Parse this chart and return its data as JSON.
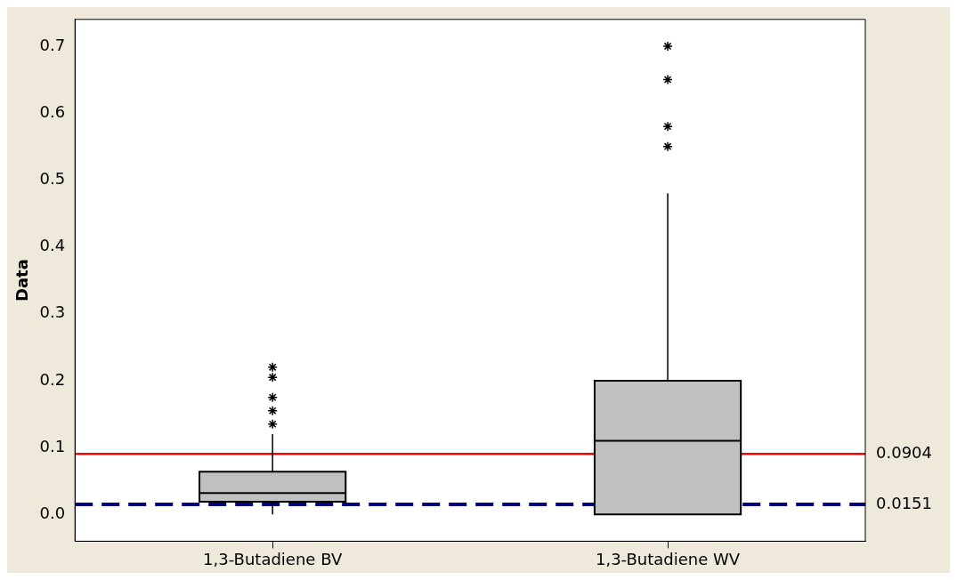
{
  "chart_data": {
    "type": "box",
    "ylabel": "Data",
    "categories": [
      "1,3-Butadiene BV",
      "1,3-Butadiene WV"
    ],
    "boxes": [
      {
        "low": 0,
        "q1": 0.019,
        "median": 0.032,
        "q3": 0.064,
        "high": 0.12,
        "outliers": [
          0.22,
          0.205,
          0.175,
          0.155,
          0.135
        ]
      },
      {
        "low": 0,
        "q1": 0,
        "median": 0.11,
        "q3": 0.2,
        "high": 0.48,
        "outliers": [
          0.7,
          0.65,
          0.58,
          0.55
        ]
      }
    ],
    "color": "#c0c0c0",
    "marker": "star",
    "ylim": [
      -0.04,
      0.74
    ],
    "yticks": [
      {
        "value": 0,
        "label": "0.0"
      },
      {
        "value": 0.1,
        "label": "0.1"
      },
      {
        "value": 0.2,
        "label": "0.2"
      },
      {
        "value": 0.3,
        "label": "0.3"
      },
      {
        "value": 0.4,
        "label": "0.4"
      },
      {
        "value": 0.5,
        "label": "0.5"
      },
      {
        "value": 0.6,
        "label": "0.6"
      },
      {
        "value": 0.7,
        "label": "0.7"
      }
    ],
    "grid": false,
    "legend": false,
    "ref_lines": [
      {
        "axis": "y",
        "value": 0.0904,
        "label": "0.0904",
        "color": "#ff0000",
        "line_style": "solid"
      },
      {
        "axis": "y",
        "value": 0.0151,
        "label": "0.0151",
        "color": "#000080",
        "line_style": "dashed"
      }
    ]
  }
}
